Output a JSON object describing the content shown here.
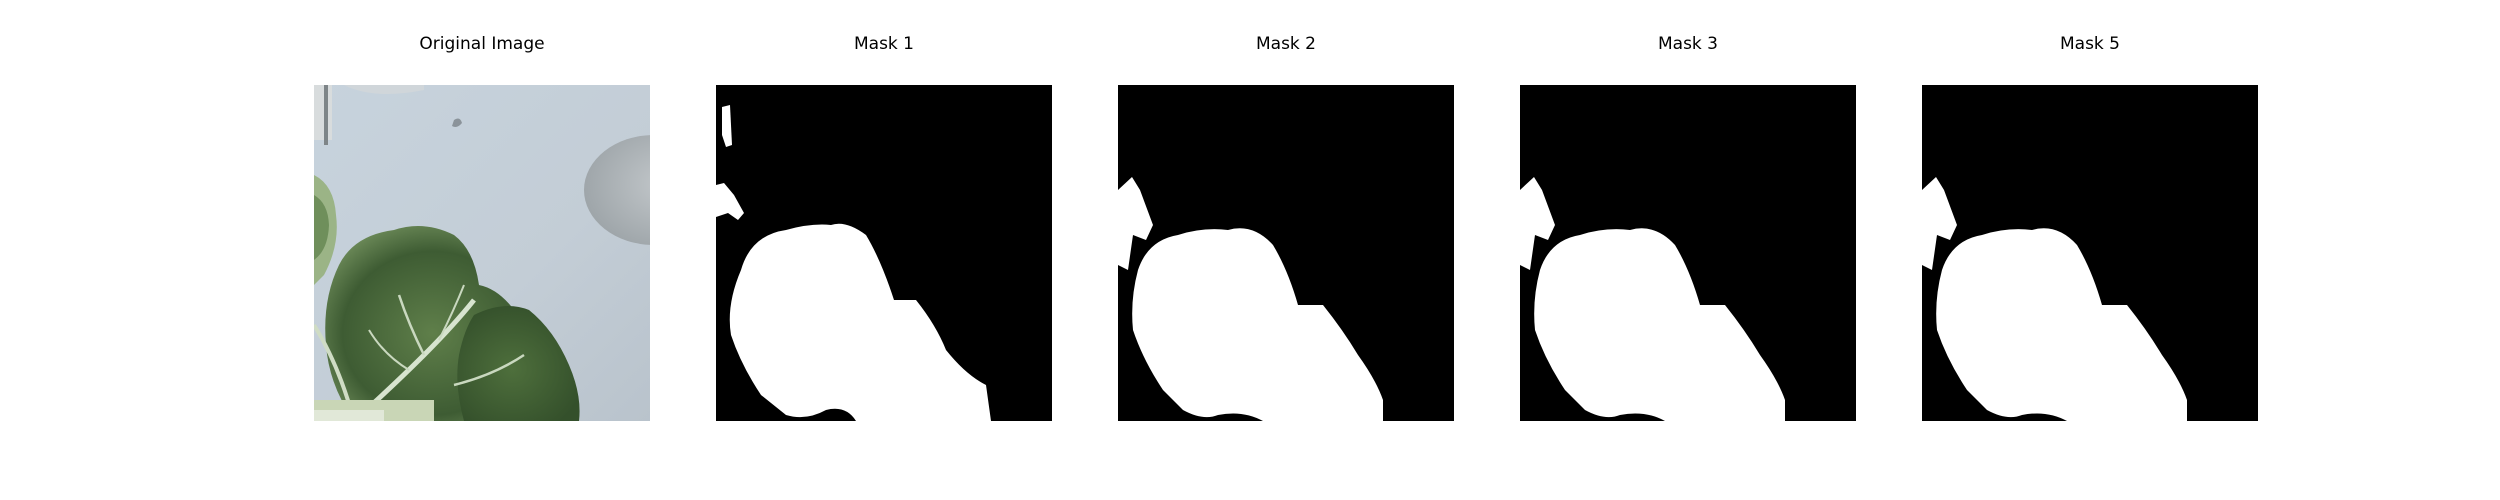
{
  "panels": [
    {
      "title": "Original Image",
      "kind": "photo"
    },
    {
      "title": "Mask 1",
      "kind": "mask",
      "variant": 1
    },
    {
      "title": "Mask 2",
      "kind": "mask",
      "variant": 2
    },
    {
      "title": "Mask 3",
      "kind": "mask",
      "variant": 3
    },
    {
      "title": "Mask 5",
      "kind": "mask",
      "variant": 5
    }
  ],
  "colors": {
    "background": "#ffffff",
    "mask_fg": "#ffffff",
    "mask_bg": "#000000",
    "wall": "#c9d3dd",
    "leaf_dark": "#3f5e34",
    "leaf_mid": "#5e7f4a",
    "leaf_light": "#a9c49a",
    "bowl": "#b5babd"
  }
}
